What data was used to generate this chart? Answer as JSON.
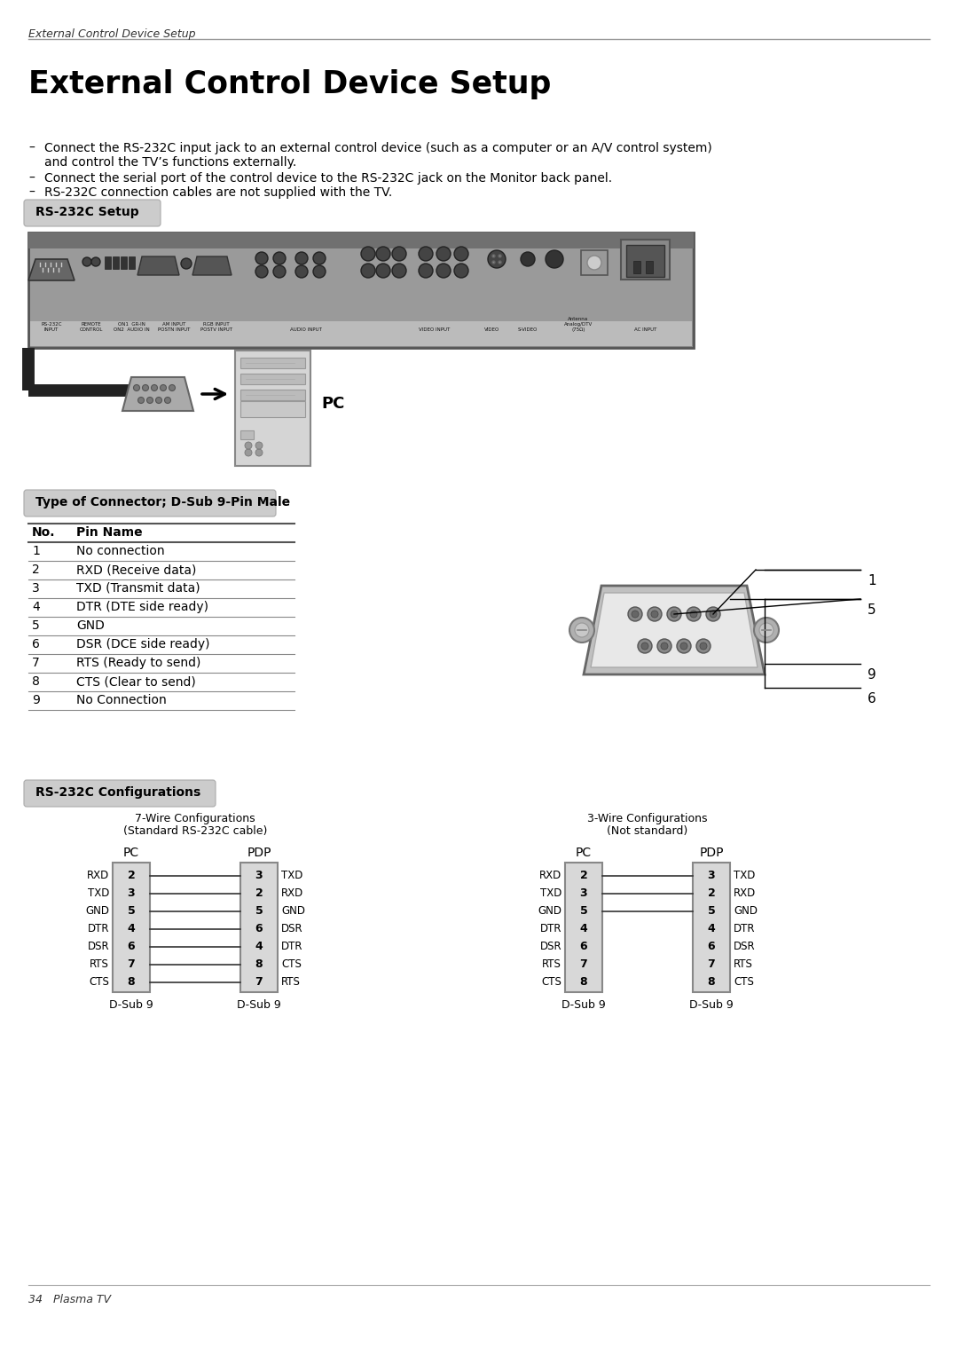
{
  "page_title": "External Control Device Setup",
  "header_text": "External Control Device Setup",
  "section1_label": "RS-232C Setup",
  "section2_label": "Type of Connector; D-Sub 9-Pin Male",
  "section3_label": "RS-232C Configurations",
  "pin_table_headers": [
    "No.",
    "Pin Name"
  ],
  "pin_table_rows": [
    [
      "1",
      "No connection"
    ],
    [
      "2",
      "RXD (Receive data)"
    ],
    [
      "3",
      "TXD (Transmit data)"
    ],
    [
      "4",
      "DTR (DTE side ready)"
    ],
    [
      "5",
      "GND"
    ],
    [
      "6",
      "DSR (DCE side ready)"
    ],
    [
      "7",
      "RTS (Ready to send)"
    ],
    [
      "8",
      "CTS (Clear to send)"
    ],
    [
      "9",
      "No Connection"
    ]
  ],
  "wire7_title1": "7-Wire Configurations",
  "wire7_title2": "(Standard RS-232C cable)",
  "wire3_title1": "3-Wire Configurations",
  "wire3_title2": "(Not standard)",
  "pc_label": "PC",
  "pdp_label": "PDP",
  "dsub9_label": "D-Sub 9",
  "wire7_pc_pins": [
    "2",
    "3",
    "5",
    "4",
    "6",
    "7",
    "8"
  ],
  "wire7_pc_labels": [
    "RXD",
    "TXD",
    "GND",
    "DTR",
    "DSR",
    "RTS",
    "CTS"
  ],
  "wire7_pdp_pins": [
    "3",
    "2",
    "5",
    "6",
    "4",
    "8",
    "7"
  ],
  "wire7_pdp_labels": [
    "TXD",
    "RXD",
    "GND",
    "DSR",
    "DTR",
    "CTS",
    "RTS"
  ],
  "wire3_pc_pins": [
    "2",
    "3",
    "5",
    "4",
    "6",
    "7",
    "8"
  ],
  "wire3_pc_labels": [
    "RXD",
    "TXD",
    "GND",
    "DTR",
    "DSR",
    "RTS",
    "CTS"
  ],
  "wire3_pdp_pins": [
    "3",
    "2",
    "5",
    "4",
    "6",
    "7",
    "8"
  ],
  "wire3_pdp_labels": [
    "TXD",
    "RXD",
    "GND",
    "DTR",
    "DSR",
    "RTS",
    "CTS"
  ],
  "wire3_connections": [
    0,
    1,
    2
  ],
  "footer_text": "34   Plasma TV",
  "bg_color": "#ffffff",
  "section_bg": "#cccccc",
  "text_color": "#000000",
  "bullet1a": "Connect the RS-232C input jack to an external control device (such as a computer or an A/V control system)",
  "bullet1b": "and control the TV’s functions externally.",
  "bullet2": "Connect the serial port of the control device to the RS-232C jack on the Monitor back panel.",
  "bullet3": "RS-232C connection cables are not supplied with the TV.",
  "pc_text": "PC"
}
